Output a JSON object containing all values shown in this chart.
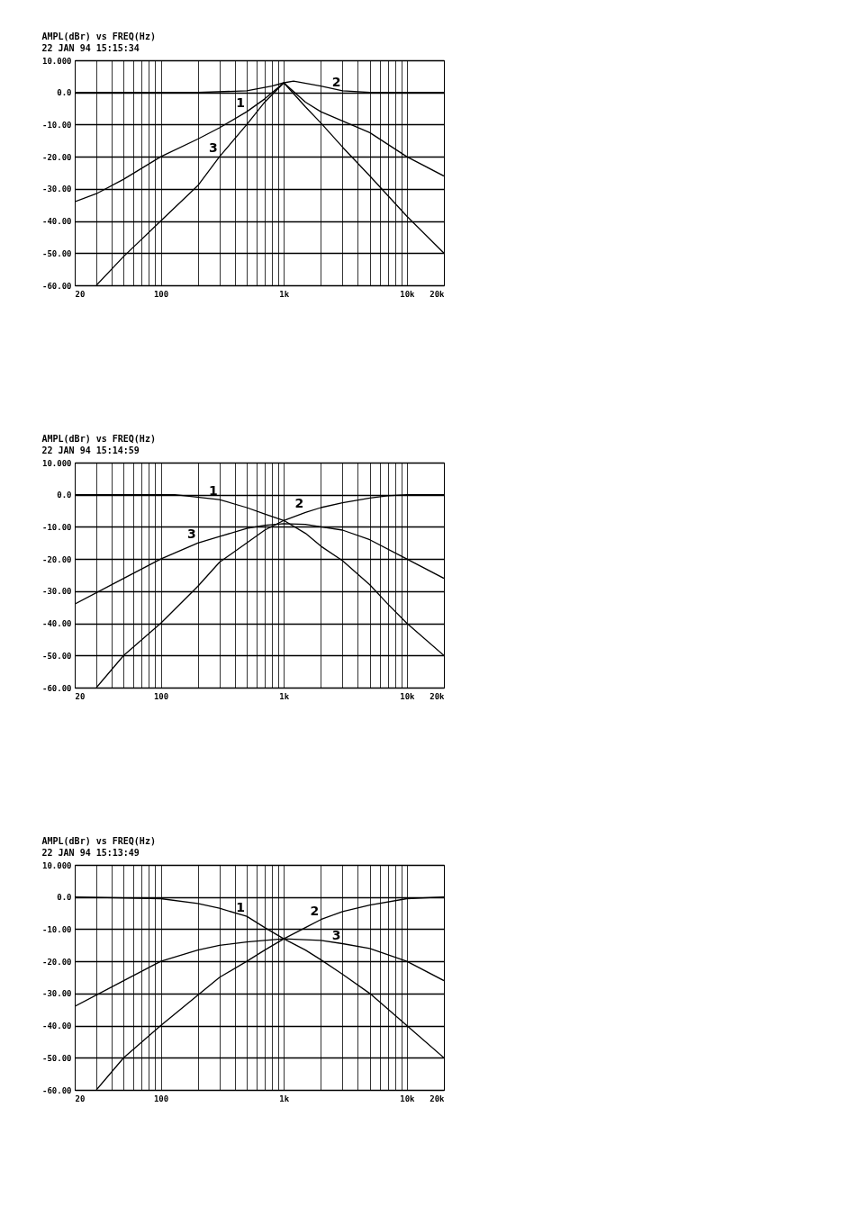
{
  "chart_data": [
    {
      "type": "line",
      "title": "AMPL(dBr) vs FREQ(Hz)",
      "subtitle": "22 JAN 94 15:15:34",
      "log": "x",
      "grid": true,
      "marker": "none",
      "line_style": "solid",
      "xlim": [
        20,
        20000
      ],
      "ylim": [
        -60,
        10
      ],
      "xticks": [
        {
          "value": 20,
          "label": "20"
        },
        {
          "value": 30,
          "label": null
        },
        {
          "value": 40,
          "label": null
        },
        {
          "value": 50,
          "label": null
        },
        {
          "value": 60,
          "label": null
        },
        {
          "value": 70,
          "label": null
        },
        {
          "value": 80,
          "label": null
        },
        {
          "value": 90,
          "label": null
        },
        {
          "value": 100,
          "label": "100"
        },
        {
          "value": 200,
          "label": null
        },
        {
          "value": 300,
          "label": null
        },
        {
          "value": 400,
          "label": null
        },
        {
          "value": 500,
          "label": null
        },
        {
          "value": 600,
          "label": null
        },
        {
          "value": 700,
          "label": null
        },
        {
          "value": 800,
          "label": null
        },
        {
          "value": 900,
          "label": null
        },
        {
          "value": 1000,
          "label": "1k"
        },
        {
          "value": 2000,
          "label": null
        },
        {
          "value": 3000,
          "label": null
        },
        {
          "value": 4000,
          "label": null
        },
        {
          "value": 5000,
          "label": null
        },
        {
          "value": 6000,
          "label": null
        },
        {
          "value": 7000,
          "label": null
        },
        {
          "value": 8000,
          "label": null
        },
        {
          "value": 9000,
          "label": null
        },
        {
          "value": 10000,
          "label": "10k"
        },
        {
          "value": 20000,
          "label": "20k"
        }
      ],
      "yticks": [
        {
          "value": 10,
          "label": "10.000"
        },
        {
          "value": 0,
          "label": "0.0"
        },
        {
          "value": -10,
          "label": "-10.00"
        },
        {
          "value": -20,
          "label": "-20.00"
        },
        {
          "value": -30,
          "label": "-30.00"
        },
        {
          "value": -40,
          "label": "-40.00"
        },
        {
          "value": -50,
          "label": "-50.00"
        },
        {
          "value": -60,
          "label": "-60.00"
        }
      ],
      "series": [
        {
          "color": "#000000",
          "x": [
            20,
            30,
            50,
            100,
            200,
            300,
            500,
            700,
            1000,
            1500,
            2000,
            5000,
            10000,
            20000
          ],
          "values": [
            -34,
            -31.5,
            -27,
            -20,
            -14.5,
            -11,
            -6,
            -2,
            3,
            -3,
            -6,
            -12.5,
            -20,
            -26
          ]
        },
        {
          "color": "#000000",
          "x": [
            20,
            200,
            500,
            800,
            1000,
            1200,
            2000,
            3000,
            5000,
            20000
          ],
          "values": [
            0,
            0,
            0.5,
            2,
            3,
            3.5,
            2,
            0.5,
            0,
            0
          ]
        },
        {
          "color": "#000000",
          "x": [
            30,
            50,
            100,
            200,
            300,
            500,
            700,
            1000,
            1500,
            2000,
            3000,
            5000,
            10000,
            20000
          ],
          "values": [
            -60,
            -51,
            -40,
            -29,
            -20,
            -10,
            -3,
            3,
            -4.5,
            -9.5,
            -17,
            -26,
            -38.5,
            -50
          ]
        }
      ],
      "annotations": [
        {
          "text": "1",
          "x": 500,
          "y": -6
        },
        {
          "text": "2",
          "x": 3000,
          "y": 0.5
        },
        {
          "text": "3",
          "x": 300,
          "y": -20
        }
      ]
    },
    {
      "type": "line",
      "title": "AMPL(dBr) vs FREQ(Hz)",
      "subtitle": "22 JAN 94 15:14:59",
      "log": "x",
      "grid": true,
      "marker": "none",
      "line_style": "solid",
      "xlim": [
        20,
        20000
      ],
      "ylim": [
        -60,
        10
      ],
      "xticks": [
        {
          "value": 20,
          "label": "20"
        },
        {
          "value": 30,
          "label": null
        },
        {
          "value": 40,
          "label": null
        },
        {
          "value": 50,
          "label": null
        },
        {
          "value": 60,
          "label": null
        },
        {
          "value": 70,
          "label": null
        },
        {
          "value": 80,
          "label": null
        },
        {
          "value": 90,
          "label": null
        },
        {
          "value": 100,
          "label": "100"
        },
        {
          "value": 200,
          "label": null
        },
        {
          "value": 300,
          "label": null
        },
        {
          "value": 400,
          "label": null
        },
        {
          "value": 500,
          "label": null
        },
        {
          "value": 600,
          "label": null
        },
        {
          "value": 700,
          "label": null
        },
        {
          "value": 800,
          "label": null
        },
        {
          "value": 900,
          "label": null
        },
        {
          "value": 1000,
          "label": "1k"
        },
        {
          "value": 2000,
          "label": null
        },
        {
          "value": 3000,
          "label": null
        },
        {
          "value": 4000,
          "label": null
        },
        {
          "value": 5000,
          "label": null
        },
        {
          "value": 6000,
          "label": null
        },
        {
          "value": 7000,
          "label": null
        },
        {
          "value": 8000,
          "label": null
        },
        {
          "value": 9000,
          "label": null
        },
        {
          "value": 10000,
          "label": "10k"
        },
        {
          "value": 20000,
          "label": "20k"
        }
      ],
      "yticks": [
        {
          "value": 10,
          "label": "10.000"
        },
        {
          "value": 0,
          "label": "0.0"
        },
        {
          "value": -10,
          "label": "-10.00"
        },
        {
          "value": -20,
          "label": "-20.00"
        },
        {
          "value": -30,
          "label": "-30.00"
        },
        {
          "value": -40,
          "label": "-40.00"
        },
        {
          "value": -50,
          "label": "-50.00"
        },
        {
          "value": -60,
          "label": "-60.00"
        }
      ],
      "series": [
        {
          "color": "#000000",
          "x": [
            20,
            130,
            300,
            500,
            700,
            1000,
            1500,
            2000,
            3000,
            5000,
            7000,
            10000,
            20000
          ],
          "values": [
            0,
            0,
            -1.5,
            -4,
            -6,
            -8,
            -12,
            -16,
            -20.5,
            -28,
            -34,
            -40,
            -50
          ]
        },
        {
          "color": "#000000",
          "x": [
            30,
            50,
            100,
            200,
            300,
            500,
            700,
            1000,
            1500,
            2000,
            3000,
            5000,
            7000,
            10000,
            20000
          ],
          "values": [
            -60,
            -50,
            -40,
            -28.5,
            -21,
            -15,
            -11,
            -8,
            -5.5,
            -4,
            -2.5,
            -1,
            -0.3,
            0,
            0
          ]
        },
        {
          "color": "#000000",
          "x": [
            20,
            50,
            100,
            200,
            300,
            500,
            700,
            1000,
            1500,
            2000,
            3000,
            5000,
            10000,
            20000
          ],
          "values": [
            -34,
            -26,
            -20,
            -15,
            -13,
            -10.5,
            -9.5,
            -9,
            -9.2,
            -10,
            -11,
            -14,
            -20,
            -26
          ]
        }
      ],
      "annotations": [
        {
          "text": "1",
          "x": 300,
          "y": -1.5
        },
        {
          "text": "2",
          "x": 1500,
          "y": -5.5
        },
        {
          "text": "3",
          "x": 200,
          "y": -15
        }
      ]
    },
    {
      "type": "line",
      "title": "AMPL(dBr) vs FREQ(Hz)",
      "subtitle": "22 JAN 94 15:13:49",
      "log": "x",
      "grid": true,
      "marker": "none",
      "line_style": "solid",
      "xlim": [
        20,
        20000
      ],
      "ylim": [
        -60,
        10
      ],
      "xticks": [
        {
          "value": 20,
          "label": "20"
        },
        {
          "value": 30,
          "label": null
        },
        {
          "value": 40,
          "label": null
        },
        {
          "value": 50,
          "label": null
        },
        {
          "value": 60,
          "label": null
        },
        {
          "value": 70,
          "label": null
        },
        {
          "value": 80,
          "label": null
        },
        {
          "value": 90,
          "label": null
        },
        {
          "value": 100,
          "label": "100"
        },
        {
          "value": 200,
          "label": null
        },
        {
          "value": 300,
          "label": null
        },
        {
          "value": 400,
          "label": null
        },
        {
          "value": 500,
          "label": null
        },
        {
          "value": 600,
          "label": null
        },
        {
          "value": 700,
          "label": null
        },
        {
          "value": 800,
          "label": null
        },
        {
          "value": 900,
          "label": null
        },
        {
          "value": 1000,
          "label": "1k"
        },
        {
          "value": 2000,
          "label": null
        },
        {
          "value": 3000,
          "label": null
        },
        {
          "value": 4000,
          "label": null
        },
        {
          "value": 5000,
          "label": null
        },
        {
          "value": 6000,
          "label": null
        },
        {
          "value": 7000,
          "label": null
        },
        {
          "value": 8000,
          "label": null
        },
        {
          "value": 9000,
          "label": null
        },
        {
          "value": 10000,
          "label": "10k"
        },
        {
          "value": 20000,
          "label": "20k"
        }
      ],
      "yticks": [
        {
          "value": 10,
          "label": "10.000"
        },
        {
          "value": 0,
          "label": "0.0"
        },
        {
          "value": -10,
          "label": "-10.00"
        },
        {
          "value": -20,
          "label": "-20.00"
        },
        {
          "value": -30,
          "label": "-30.00"
        },
        {
          "value": -40,
          "label": "-40.00"
        },
        {
          "value": -50,
          "label": "-50.00"
        },
        {
          "value": -60,
          "label": "-60.00"
        }
      ],
      "series": [
        {
          "color": "#000000",
          "x": [
            20,
            100,
            200,
            300,
            500,
            700,
            1000,
            1500,
            2000,
            3000,
            5000,
            10000,
            20000
          ],
          "values": [
            0,
            -0.5,
            -2,
            -3.5,
            -6,
            -9.5,
            -13,
            -16.5,
            -19.5,
            -24,
            -30,
            -40,
            -50
          ]
        },
        {
          "color": "#000000",
          "x": [
            30,
            50,
            100,
            200,
            300,
            500,
            700,
            1000,
            1500,
            2000,
            3000,
            5000,
            10000,
            20000
          ],
          "values": [
            -60,
            -50,
            -40,
            -30.5,
            -25,
            -20,
            -16.5,
            -13,
            -9.5,
            -7,
            -4.5,
            -2.5,
            -0.5,
            0
          ]
        },
        {
          "color": "#000000",
          "x": [
            20,
            50,
            100,
            200,
            300,
            500,
            700,
            1000,
            2000,
            3000,
            5000,
            10000,
            20000
          ],
          "values": [
            -34,
            -26,
            -20,
            -16.5,
            -15,
            -14,
            -13.5,
            -13,
            -13.5,
            -14.5,
            -16,
            -20,
            -26
          ]
        }
      ],
      "annotations": [
        {
          "text": "1",
          "x": 500,
          "y": -6
        },
        {
          "text": "2",
          "x": 2000,
          "y": -7
        },
        {
          "text": "3",
          "x": 3000,
          "y": -14.5
        }
      ]
    }
  ]
}
